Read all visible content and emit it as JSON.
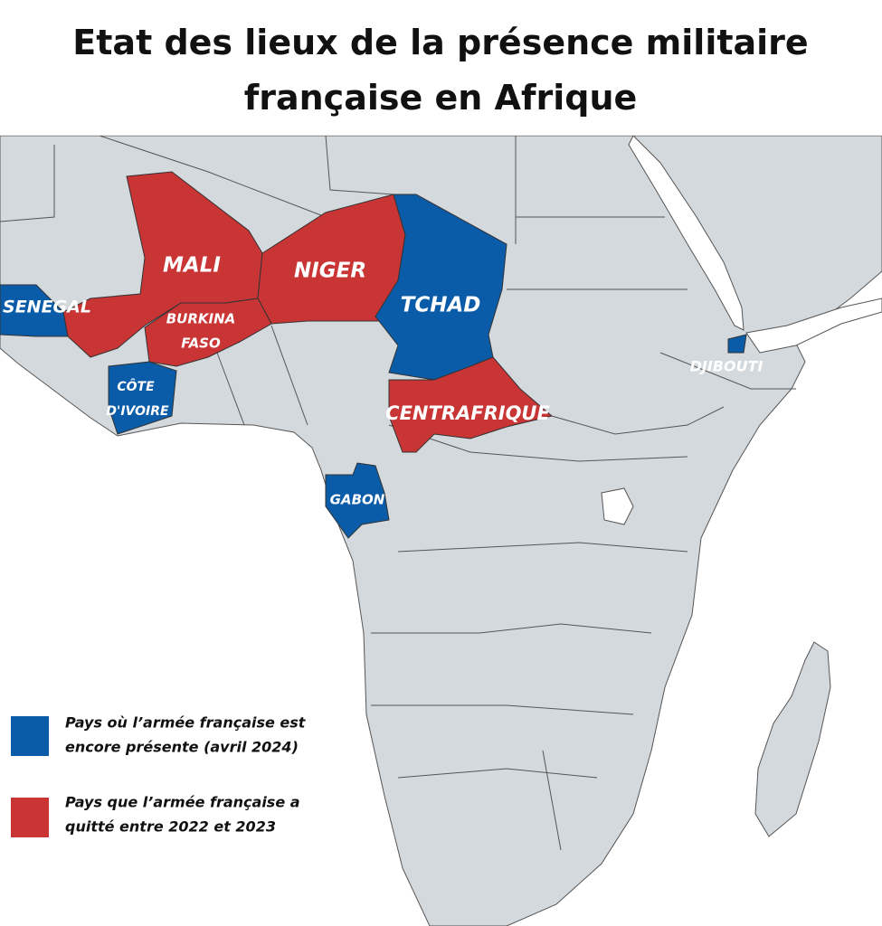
{
  "title": [
    "Etat des lieux de la présence militaire",
    "française en Afrique"
  ],
  "countries": [
    {
      "label": [
        "SENEGAL"
      ],
      "color": "#0b5ca8"
    },
    {
      "label": [
        "MALI"
      ],
      "color": "#c93434"
    },
    {
      "label": [
        "NIGER"
      ],
      "color": "#c93434"
    },
    {
      "label": [
        "TCHAD"
      ],
      "color": "#0b5ca8"
    },
    {
      "label": [
        "BURKINA",
        "FASO"
      ],
      "color": "#c93434"
    },
    {
      "label": [
        "CÔTE",
        "D'IVOIRE"
      ],
      "color": "#0b5ca8"
    },
    {
      "label": [
        "CENTRAFRIQUE"
      ],
      "color": "#c93434"
    },
    {
      "label": [
        "GABON"
      ],
      "color": "#0b5ca8"
    },
    {
      "label": [
        "DJIBOUTI"
      ],
      "color": "#0b5ca8"
    }
  ],
  "legend": [
    {
      "text": [
        "Pays où l’armée française est",
        "encore présente (avril 2024)"
      ],
      "color": "#0b5ca8"
    },
    {
      "text": [
        "Pays que l’armée française a",
        "quitté entre 2022 et 2023"
      ],
      "color": "#c93434"
    }
  ]
}
